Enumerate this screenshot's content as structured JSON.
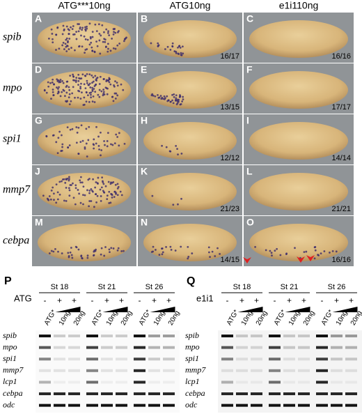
{
  "columns": [
    "ATG***10ng",
    "ATG10ng",
    "e1i110ng"
  ],
  "rows": [
    {
      "gene": "spib",
      "panels": [
        {
          "letter": "A"
        },
        {
          "letter": "B",
          "count": "16/17"
        },
        {
          "letter": "C",
          "count": "16/16"
        }
      ]
    },
    {
      "gene": "mpo",
      "panels": [
        {
          "letter": "D"
        },
        {
          "letter": "E",
          "count": "13/15"
        },
        {
          "letter": "F",
          "count": "17/17"
        }
      ]
    },
    {
      "gene": "spi1",
      "panels": [
        {
          "letter": "G"
        },
        {
          "letter": "H",
          "count": "12/12"
        },
        {
          "letter": "I",
          "count": "14/14"
        }
      ]
    },
    {
      "gene": "mmp7",
      "panels": [
        {
          "letter": "J"
        },
        {
          "letter": "K",
          "count": "21/23"
        },
        {
          "letter": "L",
          "count": "21/21"
        }
      ]
    },
    {
      "gene": "cebpa",
      "panels": [
        {
          "letter": "M"
        },
        {
          "letter": "N",
          "count": "14/15"
        },
        {
          "letter": "O",
          "count": "16/16"
        }
      ]
    }
  ],
  "gels": [
    {
      "letter": "P",
      "treatment": "ATG",
      "stages": [
        {
          "label": "St 18",
          "signs": [
            "-",
            "+",
            "+"
          ],
          "lanes": [
            "ATG*",
            "10ng",
            "20ng"
          ]
        },
        {
          "label": "St 21",
          "signs": [
            "-",
            "+",
            "+"
          ],
          "lanes": [
            "ATG*",
            "10ng",
            "20ng"
          ]
        },
        {
          "label": "St 26",
          "signs": [
            "-",
            "+",
            "+"
          ],
          "lanes": [
            "ATG*",
            "10ng",
            "20ng"
          ]
        }
      ],
      "genes": [
        "spib",
        "mpo",
        "spi1",
        "mmp7",
        "lcp1",
        "cebpa",
        "odc"
      ]
    },
    {
      "letter": "Q",
      "treatment": "e1i1",
      "stages": [
        {
          "label": "St 18",
          "signs": [
            "-",
            "+",
            "+"
          ],
          "lanes": [
            "ATG*",
            "10ng",
            "20ng"
          ]
        },
        {
          "label": "St 21",
          "signs": [
            "-",
            "+",
            "+"
          ],
          "lanes": [
            "ATG*",
            "10ng",
            "20ng"
          ]
        },
        {
          "label": "St 26",
          "signs": [
            "-",
            "+",
            "+"
          ],
          "lanes": [
            "ATG*",
            "10ng",
            "20ng"
          ]
        }
      ],
      "genes": [
        "spib",
        "mpo",
        "spi1",
        "mmp7",
        "lcp1",
        "cebpa",
        "odc"
      ]
    }
  ]
}
